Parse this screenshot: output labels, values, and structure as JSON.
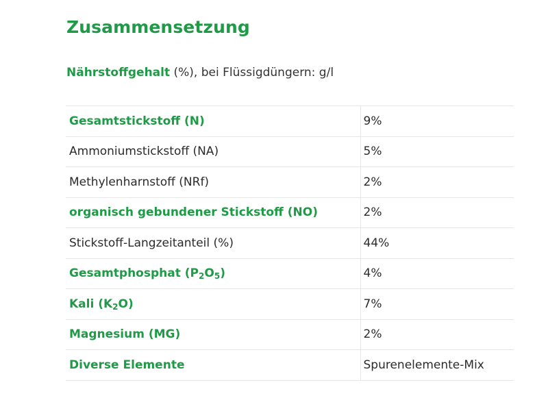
{
  "heading": "Zusammensetzung",
  "subheading": {
    "bold": "Nährstoffgehalt",
    "rest": " (%), bei Flüssigdüngern: g/l"
  },
  "rows": [
    {
      "label": "Gesamtstickstoff (N)",
      "value": "9%",
      "bold": true
    },
    {
      "label": "Ammoniumstickstoff (NA)",
      "value": "5%",
      "bold": false
    },
    {
      "label": "Methylenharnstoff (NRf)",
      "value": "2%",
      "bold": false
    },
    {
      "label": "organisch gebundener Stickstoff (NO)",
      "value": "2%",
      "bold": true
    },
    {
      "label": "Stickstoff-Langzeitanteil (%)",
      "value": "44%",
      "bold": false
    },
    {
      "label_parts": [
        "Gesamtphosphat (P",
        "2",
        "O",
        "5",
        ")"
      ],
      "value": "4%",
      "bold": true
    },
    {
      "label_parts": [
        "Kali (K",
        "2",
        "O)"
      ],
      "value": "7%",
      "bold": true
    },
    {
      "label": "Magnesium (MG)",
      "value": "2%",
      "bold": true
    },
    {
      "label": "Diverse Elemente",
      "value": "Spurenelemente-Mix",
      "bold": true
    }
  ],
  "colors": {
    "accent": "#1f9a47",
    "text": "#2b2b2b",
    "border": "#e6e6e6"
  }
}
